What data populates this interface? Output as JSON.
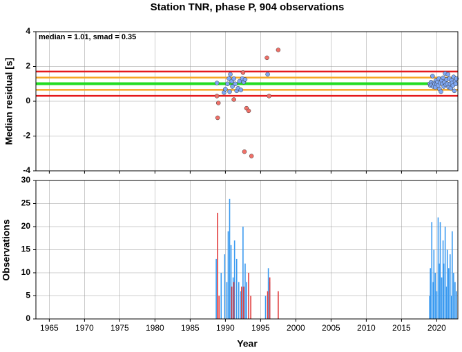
{
  "chart_data": [
    {
      "type": "scatter",
      "title": "Station TNR, phase P, 904 observations",
      "annotation": "median = 1.01, smad = 0.35",
      "ylabel": "Median residual [s]",
      "xlim": [
        1963.1,
        2023.0
      ],
      "xticks": [
        1965,
        1970,
        1975,
        1980,
        1985,
        1990,
        1995,
        2000,
        2005,
        2010,
        2015,
        2020
      ],
      "ylim": [
        -4,
        4
      ],
      "yticks": [
        -4,
        -2,
        0,
        2,
        4
      ],
      "grid": true,
      "hlines": [
        {
          "value": 1.71,
          "color": "#e41a1c"
        },
        {
          "value": 0.31,
          "color": "#e41a1c"
        },
        {
          "value": 1.36,
          "color": "#f5a623"
        },
        {
          "value": 0.66,
          "color": "#f5a623"
        },
        {
          "value": 1.01,
          "color": "#22dd22"
        }
      ],
      "series": [
        {
          "color": "#f07068",
          "x": [
            1988.8,
            1989.0,
            1988.9,
            1991.2,
            1992.5,
            1992.7,
            1993.0,
            1993.3,
            1993.7,
            1995.9,
            1996.2,
            1997.5
          ],
          "values": [
            0.3,
            -0.1,
            -0.95,
            0.1,
            1.65,
            -2.9,
            -0.4,
            -0.55,
            -3.15,
            2.5,
            0.3,
            2.95
          ]
        },
        {
          "color": "#7fa8f5",
          "x": [
            1988.8,
            1989.8,
            1990.0,
            1990.3,
            1990.5,
            1990.6,
            1990.7,
            1990.9,
            1991.0,
            1991.2,
            1991.4,
            1991.6,
            1991.8,
            1992.0,
            1992.2,
            1992.4,
            1992.6,
            1992.8,
            1996.0,
            2019.0,
            2019.1,
            2019.2,
            2019.3,
            2019.4,
            2019.5,
            2019.6,
            2019.7,
            2019.8,
            2019.9,
            2020.0,
            2020.1,
            2020.2,
            2020.3,
            2020.4,
            2020.5,
            2020.6,
            2020.7,
            2020.8,
            2020.9,
            2021.0,
            2021.1,
            2021.2,
            2021.3,
            2021.4,
            2021.5,
            2021.6,
            2021.7,
            2021.8,
            2021.9,
            2022.0,
            2022.1,
            2022.2,
            2022.3,
            2022.4,
            2022.5,
            2022.6,
            2022.7,
            2022.8
          ],
          "values": [
            1.05,
            0.5,
            0.7,
            1.0,
            1.3,
            0.55,
            1.55,
            1.15,
            0.85,
            1.3,
            1.0,
            0.6,
            0.75,
            1.15,
            0.65,
            1.3,
            1.1,
            1.25,
            1.55,
            1.0,
            0.9,
            1.1,
            0.95,
            1.45,
            0.85,
            1.05,
            1.0,
            0.8,
            1.2,
            1.0,
            1.1,
            0.9,
            1.3,
            0.7,
            1.05,
            0.55,
            1.2,
            1.0,
            1.35,
            0.85,
            1.1,
            1.6,
            0.95,
            1.25,
            1.0,
            1.55,
            0.8,
            1.3,
            1.0,
            0.75,
            1.2,
            1.05,
            0.9,
            1.4,
            0.6,
            1.15,
            1.0,
            1.3
          ]
        }
      ]
    },
    {
      "type": "bar",
      "xlabel": "Year",
      "ylabel": "Observations",
      "xlim": [
        1963.1,
        2023.0
      ],
      "xticks": [
        1965,
        1970,
        1975,
        1980,
        1985,
        1990,
        1995,
        2000,
        2005,
        2010,
        2015,
        2020
      ],
      "ylim": [
        0,
        30
      ],
      "yticks": [
        0,
        5,
        10,
        15,
        20,
        25,
        30
      ],
      "grid": true,
      "series": [
        {
          "color": "#3a9af0",
          "x": [
            1988.7,
            1989.4,
            1989.9,
            1990.2,
            1990.4,
            1990.6,
            1990.8,
            1991.1,
            1991.3,
            1991.6,
            1991.9,
            1992.2,
            1992.5,
            1992.8,
            1993.0,
            1995.7,
            1996.1,
            1996.3,
            2019.0,
            2019.1,
            2019.3,
            2019.5,
            2019.6,
            2019.8,
            2020.0,
            2020.2,
            2020.4,
            2020.5,
            2020.7,
            2020.9,
            2021.0,
            2021.2,
            2021.4,
            2021.5,
            2021.7,
            2021.9,
            2022.1,
            2022.2,
            2022.4,
            2022.6,
            2022.8
          ],
          "values": [
            13,
            10,
            14,
            8,
            19,
            26,
            16,
            9,
            17,
            13,
            8,
            6,
            20,
            12,
            8,
            5,
            11,
            8,
            5,
            11,
            21,
            8,
            15,
            10,
            6,
            22,
            12,
            21,
            9,
            17,
            12,
            20,
            7,
            15,
            11,
            14,
            5,
            19,
            10,
            8,
            6
          ]
        },
        {
          "color": "#e03a3a",
          "x": [
            1988.9,
            1989.1,
            1990.9,
            1991.2,
            1992.3,
            1992.6,
            1993.3,
            1993.6,
            1996.0,
            1996.3,
            1997.5
          ],
          "values": [
            23,
            5,
            7,
            8,
            7,
            7,
            10,
            5,
            6,
            9,
            6
          ]
        }
      ]
    }
  ]
}
